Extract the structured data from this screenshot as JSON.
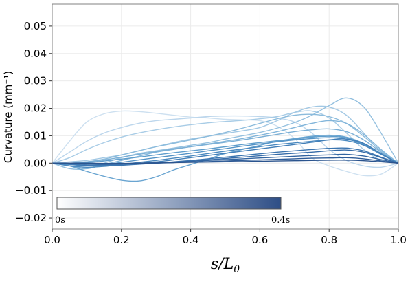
{
  "chart_data": {
    "type": "line",
    "title": "",
    "xlabel": "s/L0",
    "xlabel_main": "s/L",
    "xlabel_sub": "0",
    "ylabel": "Curvature (mm⁻¹)",
    "xlim": [
      0,
      1
    ],
    "ylim": [
      -0.024,
      0.058
    ],
    "xticks": [
      0.0,
      0.2,
      0.4,
      0.6,
      0.8,
      1.0
    ],
    "xtick_labels": [
      "0.0",
      "0.2",
      "0.4",
      "0.6",
      "0.8",
      "1.0"
    ],
    "yticks": [
      -0.02,
      -0.01,
      0.0,
      0.01,
      0.02,
      0.03,
      0.04,
      0.05
    ],
    "ytick_labels": [
      "−0.02",
      "−0.01",
      "0.00",
      "0.01",
      "0.02",
      "0.03",
      "0.04",
      "0.05"
    ],
    "grid": true,
    "colorbar": {
      "label_start": "0s",
      "label_end": "0.4s",
      "color_start": "#ffffff",
      "color_end": "#2e4e86",
      "placement": "bottom-left inside plot"
    },
    "x": [
      0.0,
      0.05,
      0.1,
      0.15,
      0.2,
      0.25,
      0.3,
      0.35,
      0.4,
      0.45,
      0.5,
      0.55,
      0.6,
      0.65,
      0.7,
      0.75,
      0.8,
      0.85,
      0.9,
      0.95,
      1.0
    ],
    "series": [
      {
        "color": "#cde0f0",
        "values": [
          0.0,
          0.008,
          0.015,
          0.018,
          0.019,
          0.0188,
          0.0182,
          0.0175,
          0.0168,
          0.0165,
          0.016,
          0.0158,
          0.0155,
          0.0135,
          0.009,
          0.002,
          -0.001,
          -0.003,
          -0.0045,
          -0.004,
          0.0
        ]
      },
      {
        "color": "#bcd6ec",
        "values": [
          0.0,
          0.004,
          0.008,
          0.011,
          0.013,
          0.0145,
          0.0155,
          0.016,
          0.0165,
          0.017,
          0.0172,
          0.0172,
          0.017,
          0.0165,
          0.015,
          0.011,
          0.005,
          0.001,
          -0.001,
          -0.0015,
          0.0
        ]
      },
      {
        "color": "#a8cce6",
        "values": [
          0.0,
          0.002,
          0.005,
          0.0075,
          0.0095,
          0.011,
          0.0122,
          0.0132,
          0.014,
          0.0147,
          0.0152,
          0.0156,
          0.0162,
          0.017,
          0.0185,
          0.019,
          0.0165,
          0.011,
          0.005,
          0.001,
          0.0
        ]
      },
      {
        "color": "#a2c8e4",
        "values": [
          0.0,
          0.0005,
          0.001,
          0.002,
          0.003,
          0.0045,
          0.006,
          0.0075,
          0.0088,
          0.0098,
          0.0108,
          0.0118,
          0.013,
          0.0155,
          0.0185,
          0.0205,
          0.0205,
          0.0175,
          0.011,
          0.004,
          0.0
        ]
      },
      {
        "color": "#94c0df",
        "values": [
          0.0,
          -0.002,
          -0.002,
          0.0,
          0.002,
          0.0035,
          0.0045,
          0.0055,
          0.0065,
          0.0075,
          0.0088,
          0.01,
          0.0112,
          0.0128,
          0.0148,
          0.0175,
          0.021,
          0.0238,
          0.0205,
          0.011,
          0.0
        ]
      },
      {
        "color": "#8bbbdc",
        "values": [
          0.0,
          0.0,
          0.0005,
          0.0015,
          0.003,
          0.0045,
          0.006,
          0.0072,
          0.0085,
          0.0098,
          0.0112,
          0.0128,
          0.0145,
          0.0162,
          0.0175,
          0.0178,
          0.017,
          0.0145,
          0.0098,
          0.0045,
          0.0
        ]
      },
      {
        "color": "#82b5da",
        "values": [
          0.0,
          -0.001,
          -0.002,
          -0.0005,
          0.001,
          0.0025,
          0.004,
          0.005,
          0.006,
          0.007,
          0.008,
          0.009,
          0.0102,
          0.0115,
          0.013,
          0.0145,
          0.0155,
          0.0145,
          0.0105,
          0.005,
          0.0
        ]
      },
      {
        "color": "#7aafd6",
        "values": [
          0.0,
          0.0,
          0.0005,
          0.0012,
          0.0022,
          0.0032,
          0.0042,
          0.0052,
          0.006,
          0.0068,
          0.0076,
          0.0085,
          0.0095,
          0.0105,
          0.0115,
          0.0122,
          0.0125,
          0.0115,
          0.0085,
          0.004,
          0.0
        ]
      },
      {
        "color": "#6aa5d1",
        "values": [
          0.0,
          -0.001,
          -0.003,
          -0.0048,
          -0.0062,
          -0.0065,
          -0.005,
          -0.0025,
          -0.0005,
          0.0015,
          0.0035,
          0.005,
          0.0065,
          0.008,
          0.009,
          0.0098,
          0.0102,
          0.0095,
          0.0072,
          0.0035,
          0.0
        ]
      },
      {
        "color": "#5e9dcc",
        "values": [
          0.0,
          0.0,
          0.0002,
          0.0008,
          0.0015,
          0.0022,
          0.003,
          0.0038,
          0.0045,
          0.0052,
          0.006,
          0.0068,
          0.0075,
          0.0082,
          0.0088,
          0.0095,
          0.0098,
          0.0092,
          0.007,
          0.0035,
          0.0
        ]
      },
      {
        "color": "#5493c6",
        "values": [
          0.0,
          -0.0005,
          -0.001,
          -0.0005,
          0.0003,
          0.0012,
          0.002,
          0.0028,
          0.0036,
          0.0045,
          0.0053,
          0.0062,
          0.007,
          0.0078,
          0.0085,
          0.009,
          0.0093,
          0.0088,
          0.0068,
          0.0033,
          0.0
        ]
      },
      {
        "color": "#4a89bf",
        "values": [
          0.0,
          -0.001,
          -0.0015,
          -0.0012,
          -0.0005,
          0.0003,
          0.001,
          0.0018,
          0.0026,
          0.0035,
          0.0044,
          0.0052,
          0.006,
          0.0068,
          0.0074,
          0.008,
          0.0085,
          0.0082,
          0.0065,
          0.0032,
          0.0
        ]
      },
      {
        "color": "#427fb8",
        "values": [
          0.0,
          -0.0005,
          -0.0008,
          -0.0008,
          -0.0005,
          0.0,
          0.0005,
          0.0012,
          0.002,
          0.0028,
          0.0036,
          0.0044,
          0.0052,
          0.006,
          0.0068,
          0.0076,
          0.0085,
          0.0088,
          0.0072,
          0.0035,
          0.0
        ]
      },
      {
        "color": "#3b75b0",
        "values": [
          0.0,
          -0.0003,
          -0.0008,
          -0.001,
          -0.0008,
          -0.0004,
          0.0,
          0.0005,
          0.001,
          0.0016,
          0.0022,
          0.0028,
          0.0034,
          0.004,
          0.0045,
          0.005,
          0.0054,
          0.0055,
          0.0045,
          0.0022,
          0.0
        ]
      },
      {
        "color": "#366ca8",
        "values": [
          0.0,
          -0.0002,
          -0.0004,
          -0.0005,
          -0.0004,
          -0.0002,
          0.0,
          0.0003,
          0.0007,
          0.0012,
          0.0017,
          0.0022,
          0.0027,
          0.0032,
          0.0036,
          0.004,
          0.0045,
          0.0048,
          0.004,
          0.002,
          0.0
        ]
      },
      {
        "color": "#3264a0",
        "values": [
          0.0,
          0.0,
          -0.0002,
          -0.0003,
          -0.0002,
          0.0,
          0.0002,
          0.0004,
          0.0007,
          0.001,
          0.0013,
          0.0016,
          0.0019,
          0.0022,
          0.0025,
          0.0028,
          0.003,
          0.0032,
          0.0026,
          0.0013,
          0.0
        ]
      },
      {
        "color": "#2e5c98",
        "values": [
          0.0,
          0.0,
          -0.0001,
          -0.0002,
          -0.0002,
          -0.0001,
          0.0,
          0.0002,
          0.0004,
          0.0006,
          0.0008,
          0.001,
          0.0012,
          0.0014,
          0.0016,
          0.0018,
          0.0019,
          0.002,
          0.0016,
          0.0008,
          0.0
        ]
      },
      {
        "color": "#2b548e",
        "values": [
          0.0,
          0.0,
          0.0,
          -0.0001,
          -0.0001,
          0.0,
          0.0001,
          0.0002,
          0.0003,
          0.0004,
          0.0005,
          0.0006,
          0.0007,
          0.0008,
          0.0009,
          0.001,
          0.0011,
          0.0011,
          0.0009,
          0.0005,
          0.0
        ]
      }
    ]
  }
}
